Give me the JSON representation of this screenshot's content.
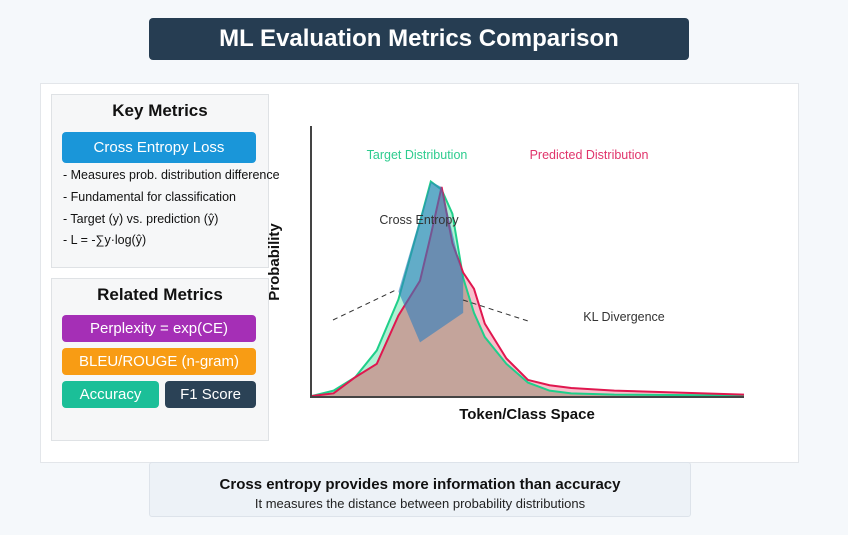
{
  "header": {
    "title": "ML Evaluation Metrics Comparison"
  },
  "key_metrics": {
    "title": "Key Metrics",
    "primary_badge": "Cross Entropy Loss",
    "primary_color": "#1a96d9",
    "bullets": [
      "- Measures prob. distribution difference",
      "- Fundamental for classification",
      "- Target (y) vs. prediction (ŷ)",
      "- L = -∑y·log(ŷ)"
    ]
  },
  "related_metrics": {
    "title": "Related Metrics",
    "badges": [
      {
        "label": "Perplexity = exp(CE)",
        "color": "#a52fb6"
      },
      {
        "label": "BLEU/ROUGE (n-gram)",
        "color": "#f89c14"
      },
      {
        "label": "Accuracy",
        "color": "#1bbf98"
      },
      {
        "label": "F1 Score",
        "color": "#2b4256"
      }
    ]
  },
  "chart_data": {
    "type": "area",
    "title": "",
    "xlabel": "Token/Class Space",
    "ylabel": "Probability",
    "grid": false,
    "xlim": [
      0,
      20
    ],
    "ylim": [
      0,
      1
    ],
    "x": [
      0,
      1,
      2,
      3,
      4,
      5,
      5.5,
      6,
      6.5,
      7,
      7.5,
      8,
      9,
      10,
      11,
      12,
      14,
      20
    ],
    "series": [
      {
        "name": "Target Distribution",
        "color": "#1fcf8a",
        "values": [
          0,
          0.02,
          0.07,
          0.17,
          0.36,
          0.65,
          0.8,
          0.77,
          0.68,
          0.44,
          0.31,
          0.22,
          0.12,
          0.05,
          0.02,
          0.01,
          0.005,
          0.002
        ]
      },
      {
        "name": "Predicted Distribution",
        "color": "#e0174f",
        "values": [
          0,
          0.01,
          0.07,
          0.12,
          0.3,
          0.43,
          0.6,
          0.78,
          0.57,
          0.46,
          0.4,
          0.27,
          0.14,
          0.06,
          0.04,
          0.03,
          0.02,
          0.005
        ]
      }
    ],
    "annotations": [
      {
        "text": "Target Distribution",
        "color": "#2ecc8f"
      },
      {
        "text": "Predicted Distribution",
        "color": "#e0346b"
      },
      {
        "text": "Cross Entropy",
        "color": "#333333"
      },
      {
        "text": "KL Divergence",
        "color": "#333333"
      }
    ]
  },
  "footer": {
    "headline": "Cross entropy provides more information than accuracy",
    "subline": "It measures the distance between probability distributions"
  }
}
